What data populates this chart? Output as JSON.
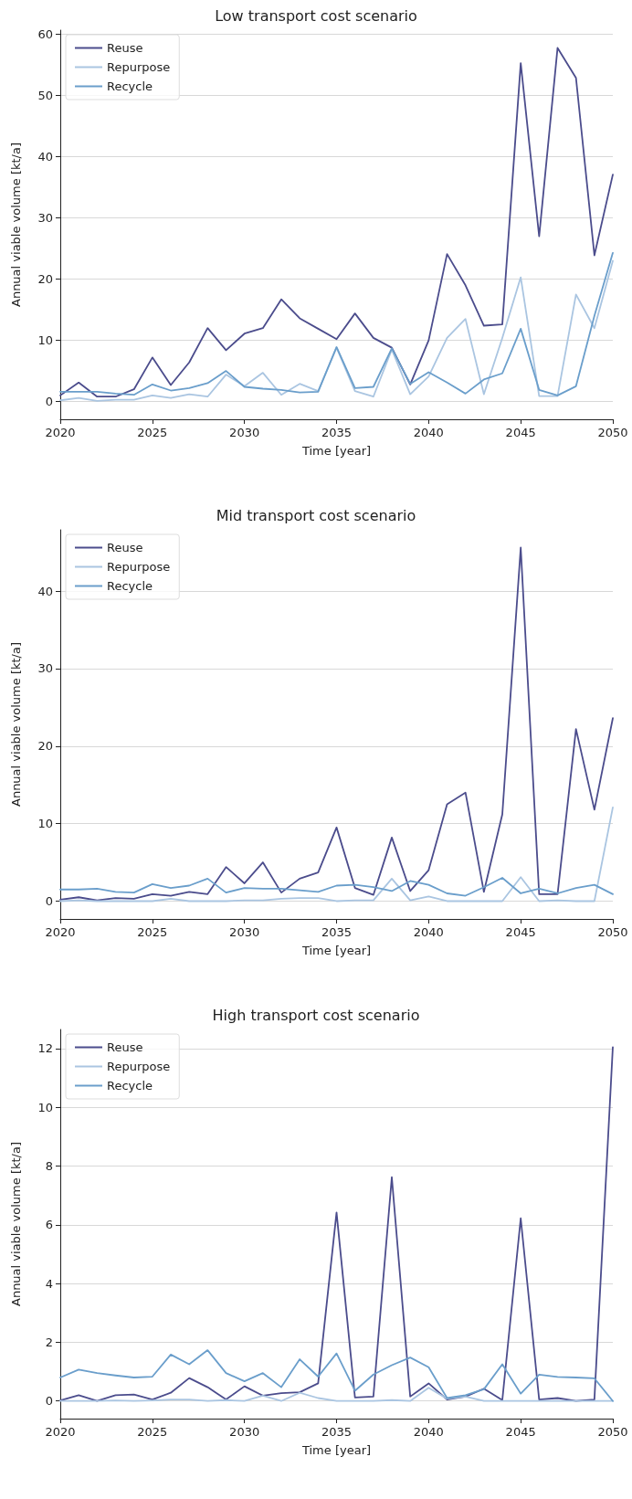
{
  "chart_data": [
    {
      "type": "line",
      "title": "Low transport cost scenario",
      "xlabel": "Time [year]",
      "ylabel": "Annual viable volume [kt/a]",
      "x": [
        2020,
        2021,
        2022,
        2023,
        2024,
        2025,
        2026,
        2027,
        2028,
        2029,
        2030,
        2031,
        2032,
        2033,
        2034,
        2035,
        2036,
        2037,
        2038,
        2039,
        2040,
        2041,
        2042,
        2043,
        2044,
        2045,
        2046,
        2047,
        2048,
        2049,
        2050
      ],
      "series": [
        {
          "name": "Reuse",
          "color": "#4b4c8c",
          "values": [
            1.0,
            3.1,
            0.8,
            0.8,
            2.0,
            7.2,
            2.7,
            6.4,
            12.0,
            8.4,
            11.1,
            12.0,
            16.7,
            13.6,
            11.9,
            10.2,
            14.4,
            10.4,
            8.8,
            2.8,
            10.0,
            24.1,
            19.0,
            12.4,
            12.6,
            55.3,
            27.0,
            57.8,
            52.9,
            23.9,
            37.1
          ]
        },
        {
          "name": "Repurpose",
          "color": "#aac5e1",
          "values": [
            0.2,
            0.6,
            0.1,
            0.3,
            0.3,
            1.0,
            0.6,
            1.2,
            0.8,
            4.4,
            2.5,
            4.7,
            1.1,
            2.9,
            1.7,
            8.8,
            1.7,
            0.8,
            8.5,
            1.2,
            4.1,
            10.4,
            13.5,
            1.2,
            10.4,
            20.3,
            0.9,
            0.9,
            17.5,
            12.0,
            23.0
          ]
        },
        {
          "name": "Recycle",
          "color": "#6a9ecb",
          "values": [
            1.6,
            1.6,
            1.6,
            1.3,
            1.1,
            2.8,
            1.8,
            2.2,
            3.0,
            5.0,
            2.4,
            2.1,
            1.9,
            1.5,
            1.6,
            8.9,
            2.2,
            2.4,
            8.7,
            2.9,
            4.8,
            3.1,
            1.3,
            3.6,
            4.6,
            11.9,
            1.9,
            1.0,
            2.5,
            14.0,
            24.3
          ]
        }
      ],
      "xlim": [
        2020,
        2050
      ],
      "xticks": [
        2020,
        2025,
        2030,
        2035,
        2040,
        2045,
        2050
      ],
      "ylim": [
        -2.9,
        60.7
      ],
      "yticks": [
        0,
        10,
        20,
        30,
        40,
        50,
        60
      ],
      "grid": "y",
      "legend": "top left",
      "line_style": "solid",
      "marker": "none"
    },
    {
      "type": "line",
      "title": "Mid transport cost scenario",
      "xlabel": "Time [year]",
      "ylabel": "Annual viable volume [kt/a]",
      "x": [
        2020,
        2021,
        2022,
        2023,
        2024,
        2025,
        2026,
        2027,
        2028,
        2029,
        2030,
        2031,
        2032,
        2033,
        2034,
        2035,
        2036,
        2037,
        2038,
        2039,
        2040,
        2041,
        2042,
        2043,
        2044,
        2045,
        2046,
        2047,
        2048,
        2049,
        2050
      ],
      "series": [
        {
          "name": "Reuse",
          "color": "#4b4c8c",
          "values": [
            0.2,
            0.5,
            0.1,
            0.4,
            0.3,
            0.9,
            0.7,
            1.2,
            0.9,
            4.4,
            2.3,
            5.0,
            1.1,
            2.9,
            3.7,
            9.5,
            1.7,
            0.8,
            8.2,
            1.3,
            4.0,
            12.5,
            14.0,
            1.2,
            11.2,
            45.6,
            0.9,
            0.9,
            22.2,
            11.8,
            23.6
          ]
        },
        {
          "name": "Repurpose",
          "color": "#aac5e1",
          "values": [
            0.0,
            0.1,
            0.0,
            0.0,
            0.0,
            0.0,
            0.3,
            0.0,
            0.0,
            0.0,
            0.1,
            0.1,
            0.3,
            0.4,
            0.4,
            0.0,
            0.1,
            0.1,
            2.9,
            0.1,
            0.6,
            0.0,
            0.0,
            0.0,
            0.0,
            3.1,
            0.0,
            0.1,
            0.0,
            0.0,
            12.1
          ]
        },
        {
          "name": "Recycle",
          "color": "#6a9ecb",
          "values": [
            1.5,
            1.5,
            1.6,
            1.2,
            1.1,
            2.2,
            1.7,
            2.0,
            2.9,
            1.1,
            1.7,
            1.6,
            1.6,
            1.4,
            1.2,
            2.0,
            2.1,
            1.8,
            1.3,
            2.6,
            2.1,
            1.0,
            0.7,
            1.8,
            3.0,
            1.0,
            1.6,
            1.0,
            1.7,
            2.1,
            0.9
          ]
        }
      ],
      "xlim": [
        2020,
        2050
      ],
      "xticks": [
        2020,
        2025,
        2030,
        2035,
        2040,
        2045,
        2050
      ],
      "ylim": [
        -2.3,
        47.9
      ],
      "yticks": [
        0,
        10,
        20,
        30,
        40
      ],
      "grid": "y",
      "legend": "top left",
      "line_style": "solid",
      "marker": "none"
    },
    {
      "type": "line",
      "title": "High transport cost scenario",
      "xlabel": "Time [year]",
      "ylabel": "Annual viable volume [kt/a]",
      "x": [
        2020,
        2021,
        2022,
        2023,
        2024,
        2025,
        2026,
        2027,
        2028,
        2029,
        2030,
        2031,
        2032,
        2033,
        2034,
        2035,
        2036,
        2037,
        2038,
        2039,
        2040,
        2041,
        2042,
        2043,
        2044,
        2045,
        2046,
        2047,
        2048,
        2049,
        2050
      ],
      "series": [
        {
          "name": "Reuse",
          "color": "#4b4c8c",
          "values": [
            0.02,
            0.2,
            0.0,
            0.2,
            0.22,
            0.05,
            0.28,
            0.78,
            0.47,
            0.05,
            0.5,
            0.18,
            0.27,
            0.3,
            0.6,
            6.42,
            0.12,
            0.15,
            7.62,
            0.15,
            0.6,
            0.05,
            0.15,
            0.42,
            0.03,
            6.22,
            0.05,
            0.1,
            0.0,
            0.05,
            12.05
          ]
        },
        {
          "name": "Repurpose",
          "color": "#aac5e1",
          "values": [
            0.0,
            0.0,
            0.0,
            0.02,
            0.0,
            0.02,
            0.05,
            0.05,
            0.0,
            0.03,
            0.0,
            0.18,
            0.0,
            0.28,
            0.1,
            0.0,
            0.0,
            0.0,
            0.03,
            0.0,
            0.45,
            0.08,
            0.15,
            0.0,
            0.0,
            0.0,
            0.0,
            0.0,
            0.0,
            0.0,
            0.0
          ]
        },
        {
          "name": "Recycle",
          "color": "#6a9ecb",
          "values": [
            0.8,
            1.07,
            0.95,
            0.87,
            0.8,
            0.83,
            1.58,
            1.25,
            1.73,
            0.95,
            0.67,
            0.95,
            0.47,
            1.42,
            0.83,
            1.62,
            0.35,
            0.9,
            1.22,
            1.48,
            1.15,
            0.1,
            0.2,
            0.4,
            1.25,
            0.25,
            0.9,
            0.82,
            0.8,
            0.77,
            0.0
          ]
        }
      ],
      "xlim": [
        2020,
        2050
      ],
      "xticks": [
        2020,
        2025,
        2030,
        2035,
        2040,
        2045,
        2050
      ],
      "ylim": [
        -0.6,
        12.65
      ],
      "yticks": [
        0,
        2,
        4,
        6,
        8,
        10,
        12
      ],
      "grid": "y",
      "legend": "top left",
      "line_style": "solid",
      "marker": "none"
    }
  ]
}
